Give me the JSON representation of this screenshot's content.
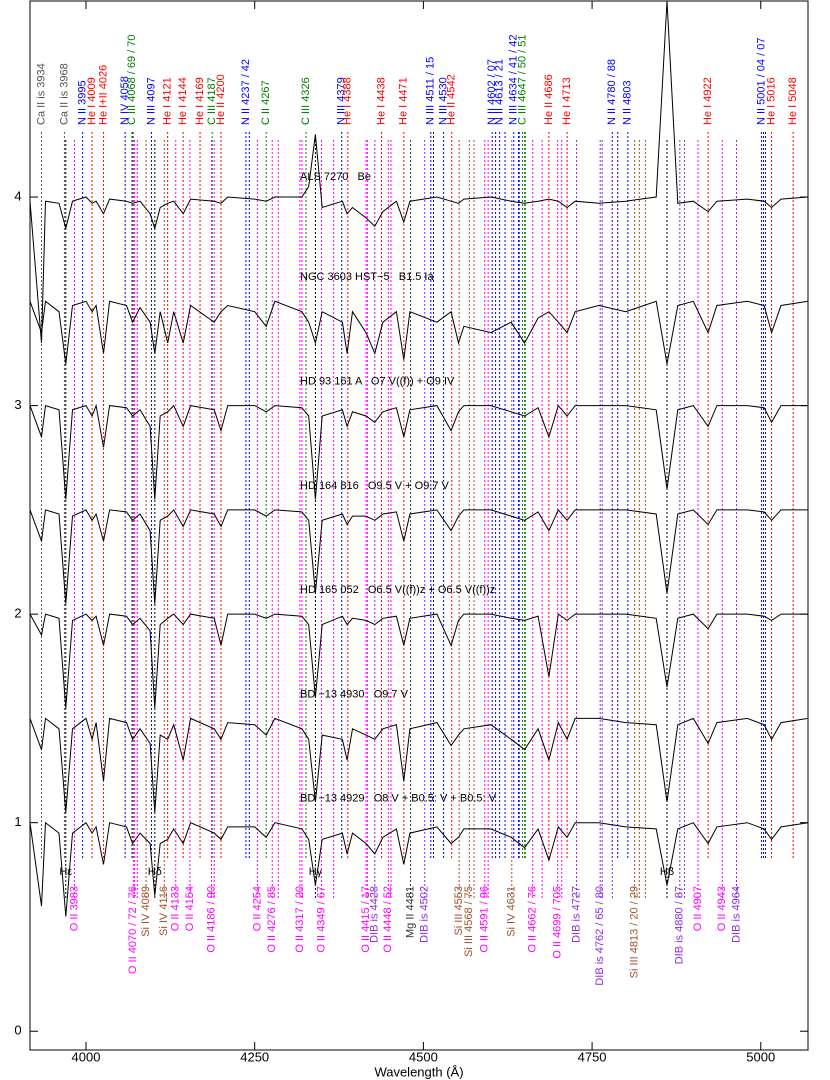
{
  "chart_data": {
    "type": "line",
    "xlabel": "Wavelength (Å)",
    "xlim": [
      3917,
      5070
    ],
    "ylim": [
      -0.09,
      4.94
    ],
    "xticks": [
      4000,
      4250,
      4500,
      4750,
      5000
    ],
    "yticks": [
      0,
      1,
      2,
      3,
      4
    ],
    "x": [
      3917,
      3934,
      3940,
      3960,
      3970,
      3980,
      4000,
      4009,
      4015,
      4026,
      4035,
      4060,
      4069,
      4080,
      4095,
      4102,
      4110,
      4121,
      4130,
      4144,
      4155,
      4190,
      4200,
      4210,
      4250,
      4267,
      4280,
      4320,
      4330,
      4340,
      4350,
      4380,
      4387,
      4395,
      4415,
      4428,
      4440,
      4460,
      4471,
      4480,
      4520,
      4541,
      4552,
      4560,
      4600,
      4630,
      4650,
      4670,
      4686,
      4700,
      4713,
      4725,
      4760,
      4800,
      4845,
      4861,
      4877,
      4900,
      4922,
      4935,
      4980,
      5005,
      5016,
      5030,
      5070
    ],
    "series": [
      {
        "name": "ALS 7270   Be",
        "color": "#000000",
        "values": [
          3.98,
          3.3,
          3.98,
          3.97,
          3.85,
          3.98,
          4.0,
          3.97,
          3.98,
          3.92,
          3.99,
          3.98,
          3.97,
          3.98,
          3.92,
          3.85,
          3.95,
          3.97,
          3.98,
          3.92,
          3.99,
          3.98,
          3.97,
          4.0,
          3.99,
          3.98,
          4.0,
          4.0,
          4.05,
          4.3,
          3.95,
          3.98,
          3.92,
          3.95,
          3.9,
          3.86,
          3.93,
          3.98,
          3.88,
          3.98,
          4.0,
          3.98,
          3.97,
          3.99,
          4.0,
          3.98,
          3.97,
          3.98,
          3.99,
          3.98,
          3.95,
          3.98,
          3.97,
          3.98,
          4.0,
          4.94,
          3.97,
          3.98,
          3.93,
          3.98,
          3.99,
          3.98,
          3.95,
          3.99,
          4.0
        ]
      },
      {
        "name": "NGC 3603 HST−5   B1.5 Ia",
        "color": "#000000",
        "values": [
          3.5,
          3.35,
          3.5,
          3.45,
          3.2,
          3.48,
          3.5,
          3.45,
          3.48,
          3.25,
          3.5,
          3.48,
          3.4,
          3.47,
          3.4,
          3.25,
          3.45,
          3.3,
          3.45,
          3.3,
          3.48,
          3.4,
          3.45,
          3.48,
          3.45,
          3.38,
          3.5,
          3.45,
          3.4,
          3.3,
          3.45,
          3.4,
          3.25,
          3.45,
          3.35,
          3.25,
          3.4,
          3.45,
          3.22,
          3.45,
          3.4,
          3.45,
          3.3,
          3.38,
          3.35,
          3.4,
          3.3,
          3.42,
          3.45,
          3.4,
          3.35,
          3.45,
          3.48,
          3.45,
          3.5,
          3.2,
          3.48,
          3.5,
          3.35,
          3.48,
          3.5,
          3.48,
          3.35,
          3.48,
          3.5
        ]
      },
      {
        "name": "HD 93 161 A   O7 V((f)) + O9 IV",
        "color": "#000000",
        "values": [
          3.0,
          2.85,
          3.0,
          2.98,
          2.55,
          2.98,
          3.0,
          2.95,
          3.0,
          2.8,
          3.0,
          2.99,
          2.95,
          2.98,
          2.9,
          2.55,
          2.95,
          2.97,
          3.0,
          2.9,
          3.0,
          2.98,
          2.88,
          3.0,
          3.0,
          2.97,
          3.0,
          2.99,
          2.95,
          2.55,
          2.95,
          2.98,
          2.9,
          2.97,
          2.95,
          2.92,
          2.97,
          2.99,
          2.85,
          2.98,
          3.0,
          2.88,
          2.97,
          3.0,
          3.0,
          2.97,
          2.95,
          2.99,
          2.85,
          3.0,
          2.95,
          3.0,
          3.0,
          3.0,
          2.98,
          2.6,
          2.98,
          3.0,
          2.9,
          3.0,
          3.0,
          2.99,
          2.92,
          3.0,
          3.0
        ]
      },
      {
        "name": "HD 164 816   O9.5 V + O9.7 V",
        "color": "#000000",
        "values": [
          2.5,
          2.35,
          2.5,
          2.48,
          2.05,
          2.47,
          2.5,
          2.45,
          2.48,
          2.35,
          2.5,
          2.49,
          2.45,
          2.48,
          2.4,
          2.05,
          2.45,
          2.47,
          2.5,
          2.42,
          2.5,
          2.48,
          2.42,
          2.5,
          2.5,
          2.47,
          2.5,
          2.49,
          2.45,
          2.1,
          2.45,
          2.48,
          2.43,
          2.47,
          2.47,
          2.45,
          2.48,
          2.49,
          2.35,
          2.48,
          2.5,
          2.4,
          2.47,
          2.5,
          2.5,
          2.47,
          2.45,
          2.49,
          2.4,
          2.5,
          2.45,
          2.5,
          2.5,
          2.5,
          2.48,
          2.1,
          2.48,
          2.5,
          2.43,
          2.5,
          2.5,
          2.49,
          2.45,
          2.5,
          2.5
        ]
      },
      {
        "name": "HD 165 052   O6.5 V((f))z + O6.5 V((f))z",
        "color": "#000000",
        "values": [
          2.0,
          1.9,
          2.0,
          1.98,
          1.55,
          1.97,
          2.0,
          1.97,
          1.99,
          1.85,
          2.0,
          1.99,
          1.95,
          1.98,
          1.92,
          1.55,
          1.95,
          1.98,
          2.0,
          1.95,
          2.0,
          1.98,
          1.85,
          2.0,
          2.0,
          1.98,
          2.0,
          1.99,
          1.95,
          1.6,
          1.95,
          1.99,
          1.95,
          1.98,
          1.97,
          1.95,
          1.98,
          1.99,
          1.85,
          1.98,
          2.0,
          1.85,
          1.97,
          2.0,
          2.0,
          1.98,
          1.97,
          1.99,
          1.7,
          2.0,
          1.97,
          2.0,
          2.0,
          2.0,
          1.98,
          1.65,
          1.98,
          2.0,
          1.93,
          2.0,
          2.0,
          1.99,
          1.97,
          2.0,
          2.0
        ]
      },
      {
        "name": "BD −13 4930   O9.7 V",
        "color": "#000000",
        "values": [
          1.5,
          1.35,
          1.5,
          1.45,
          1.05,
          1.45,
          1.5,
          1.4,
          1.48,
          1.2,
          1.5,
          1.48,
          1.4,
          1.45,
          1.38,
          1.05,
          1.42,
          1.4,
          1.47,
          1.3,
          1.5,
          1.45,
          1.4,
          1.48,
          1.47,
          1.42,
          1.5,
          1.45,
          1.4,
          1.1,
          1.42,
          1.4,
          1.3,
          1.45,
          1.42,
          1.4,
          1.45,
          1.47,
          1.2,
          1.45,
          1.48,
          1.37,
          1.42,
          1.45,
          1.47,
          1.4,
          1.35,
          1.45,
          1.3,
          1.48,
          1.4,
          1.5,
          1.5,
          1.48,
          1.47,
          1.1,
          1.47,
          1.5,
          1.38,
          1.48,
          1.5,
          1.47,
          1.4,
          1.48,
          1.5
        ]
      },
      {
        "name": "BD −13 4929   O8 V + B0.5: V + B0.5: V",
        "color": "#000000",
        "values": [
          1.0,
          0.6,
          1.0,
          0.95,
          0.55,
          0.95,
          1.0,
          0.95,
          0.98,
          0.8,
          1.0,
          0.98,
          0.9,
          0.95,
          0.9,
          0.65,
          0.9,
          0.92,
          0.97,
          0.9,
          1.0,
          0.95,
          0.92,
          0.98,
          0.98,
          0.93,
          1.0,
          0.97,
          0.92,
          0.7,
          0.92,
          0.95,
          0.85,
          0.95,
          0.9,
          0.85,
          0.93,
          0.97,
          0.8,
          0.95,
          0.98,
          0.9,
          0.93,
          0.97,
          0.97,
          0.93,
          0.88,
          0.97,
          0.82,
          0.98,
          0.93,
          1.0,
          1.0,
          0.98,
          0.97,
          0.7,
          0.97,
          1.0,
          0.9,
          0.98,
          1.0,
          0.97,
          0.92,
          0.98,
          1.0
        ]
      }
    ],
    "line_ids": {
      "top": [
        {
          "label": "Ca II is 3934",
          "x": [
            3934
          ],
          "color": "#555555"
        },
        {
          "label": "Ca II is 3968",
          "x": [
            3968
          ],
          "color": "#555555"
        },
        {
          "label": "N II 3995",
          "x": [
            3995
          ],
          "color": "#0000ff"
        },
        {
          "label": "He I 4009",
          "x": [
            4009
          ],
          "color": "#ff0000"
        },
        {
          "label": "He I+II 4026",
          "x": [
            4026
          ],
          "color": "#ff0000"
        },
        {
          "label": "N IV 4058",
          "x": [
            4058
          ],
          "color": "#0000ff"
        },
        {
          "label": "C III 4068 / 69 / 70",
          "x": [
            4068,
            4069,
            4070
          ],
          "color": "#008000"
        },
        {
          "label": "N III 4097",
          "x": [
            4097
          ],
          "color": "#0000ff"
        },
        {
          "label": "He I 4121",
          "x": [
            4121
          ],
          "color": "#ff0000"
        },
        {
          "label": "He I 4144",
          "x": [
            4144
          ],
          "color": "#ff0000"
        },
        {
          "label": "He I 4169",
          "x": [
            4169
          ],
          "color": "#ff0000"
        },
        {
          "label": "C III 4187",
          "x": [
            4187
          ],
          "color": "#008000"
        },
        {
          "label": "He II 4200",
          "x": [
            4200
          ],
          "color": "#ff0000"
        },
        {
          "label": "N II 4237 / 42",
          "x": [
            4237,
            4242
          ],
          "color": "#0000ff"
        },
        {
          "label": "C II 4267",
          "x": [
            4267
          ],
          "color": "#008000"
        },
        {
          "label": "C III 4326",
          "x": [
            4326
          ],
          "color": "#008000"
        },
        {
          "label": "N III 4379",
          "x": [
            4379
          ],
          "color": "#0000ff"
        },
        {
          "label": "He I 4388",
          "x": [
            4388
          ],
          "color": "#ff0000"
        },
        {
          "label": "He I 4438",
          "x": [
            4438
          ],
          "color": "#ff0000"
        },
        {
          "label": "He I 4471",
          "x": [
            4471
          ],
          "color": "#ff0000"
        },
        {
          "label": "N III 4511 / 15",
          "x": [
            4511,
            4515
          ],
          "color": "#0000ff"
        },
        {
          "label": "N III 4530",
          "x": [
            4530
          ],
          "color": "#0000ff"
        },
        {
          "label": "He II 4542",
          "x": [
            4542
          ],
          "color": "#ff0000"
        },
        {
          "label": "N II 4602 / 07",
          "x": [
            4602,
            4607
          ],
          "color": "#0000ff"
        },
        {
          "label": "N II 4613 / 21",
          "x": [
            4613,
            4621
          ],
          "color": "#0000ff"
        },
        {
          "label": "N III 4634 / 41 / 42",
          "x": [
            4634,
            4641,
            4642
          ],
          "color": "#0000ff"
        },
        {
          "label": "C III 4647 / 50 / 51",
          "x": [
            4647,
            4650,
            4651
          ],
          "color": "#008000"
        },
        {
          "label": "He II 4686",
          "x": [
            4686
          ],
          "color": "#ff0000"
        },
        {
          "label": "He I 4713",
          "x": [
            4713
          ],
          "color": "#ff0000"
        },
        {
          "label": "N II 4780 / 88",
          "x": [
            4780,
            4788
          ],
          "color": "#0000ff"
        },
        {
          "label": "N II 4803",
          "x": [
            4803
          ],
          "color": "#0000ff"
        },
        {
          "label": "He I 4922",
          "x": [
            4922
          ],
          "color": "#ff0000"
        },
        {
          "label": "N II 5001 / 04 / 07",
          "x": [
            5001,
            5004,
            5007
          ],
          "color": "#0000ff"
        },
        {
          "label": "He I 5016",
          "x": [
            5016
          ],
          "color": "#ff0000"
        },
        {
          "label": "He I 5048",
          "x": [
            5048
          ],
          "color": "#ff0000"
        }
      ],
      "bottom": [
        {
          "label": "Hε",
          "x": [
            3970
          ],
          "color": "#000000"
        },
        {
          "label": "O II 3983",
          "x": [
            3983
          ],
          "color": "#ff00ff"
        },
        {
          "label": "O II 4070 / 72 / 76",
          "x": [
            4070,
            4072,
            4076
          ],
          "color": "#ff00ff"
        },
        {
          "label": "Si IV 4089",
          "x": [
            4089
          ],
          "color": "#a0522d"
        },
        {
          "label": "Hδ",
          "x": [
            4102
          ],
          "color": "#000000"
        },
        {
          "label": "Si IV 4116",
          "x": [
            4116
          ],
          "color": "#a0522d"
        },
        {
          "label": "O II 4133",
          "x": [
            4133
          ],
          "color": "#ff00ff"
        },
        {
          "label": "O II 4154",
          "x": [
            4154
          ],
          "color": "#ff00ff"
        },
        {
          "label": "O II 4186 / 90",
          "x": [
            4186,
            4190
          ],
          "color": "#ff00ff"
        },
        {
          "label": "O II 4254",
          "x": [
            4254
          ],
          "color": "#ff00ff"
        },
        {
          "label": "O II 4276 / 85",
          "x": [
            4276,
            4285
          ],
          "color": "#ff00ff"
        },
        {
          "label": "O II 4317 / 20",
          "x": [
            4317,
            4320
          ],
          "color": "#ff00ff"
        },
        {
          "label": "Hγ",
          "x": [
            4340
          ],
          "color": "#000000"
        },
        {
          "label": "O II 4349 / 67",
          "x": [
            4349,
            4367
          ],
          "color": "#ff00ff"
        },
        {
          "label": "O II 4415 / 17",
          "x": [
            4415,
            4417
          ],
          "color": "#ff00ff"
        },
        {
          "label": "DIB is 4428",
          "x": [
            4428
          ],
          "color": "#8a2be2"
        },
        {
          "label": "O II 4448 / 52",
          "x": [
            4448,
            4452
          ],
          "color": "#ff00ff"
        },
        {
          "label": "Mg II 4481",
          "x": [
            4481
          ],
          "color": "#333333"
        },
        {
          "label": "DIB is 4502",
          "x": [
            4502
          ],
          "color": "#8a2be2"
        },
        {
          "label": "Si III 4553",
          "x": [
            4553
          ],
          "color": "#a0522d"
        },
        {
          "label": "Si III 4568 / 75",
          "x": [
            4568,
            4575
          ],
          "color": "#a0522d"
        },
        {
          "label": "O II 4591 / 96",
          "x": [
            4591,
            4596
          ],
          "color": "#ff00ff"
        },
        {
          "label": "Si IV 4631",
          "x": [
            4631
          ],
          "color": "#a0522d"
        },
        {
          "label": "O II 4662 / 76",
          "x": [
            4662,
            4676
          ],
          "color": "#ff00ff"
        },
        {
          "label": "O II 4699 / 705",
          "x": [
            4699,
            4705
          ],
          "color": "#ff00ff"
        },
        {
          "label": "DIB is 4727",
          "x": [
            4727
          ],
          "color": "#8a2be2"
        },
        {
          "label": "DIB is 4762 / 65 / 80",
          "x": [
            4762,
            4765,
            4780
          ],
          "color": "#8a2be2"
        },
        {
          "label": "Si III 4813 / 20 / 29",
          "x": [
            4813,
            4820,
            4829
          ],
          "color": "#a0522d"
        },
        {
          "label": "Hβ",
          "x": [
            4861
          ],
          "color": "#000000"
        },
        {
          "label": "DIB is 4880 / 87",
          "x": [
            4880,
            4887
          ],
          "color": "#8a2be2"
        },
        {
          "label": "O II 4907",
          "x": [
            4907
          ],
          "color": "#ff00ff"
        },
        {
          "label": "O II 4943",
          "x": [
            4943
          ],
          "color": "#ff00ff"
        },
        {
          "label": "DIB is 4964",
          "x": [
            4964
          ],
          "color": "#8a2be2"
        }
      ]
    }
  }
}
